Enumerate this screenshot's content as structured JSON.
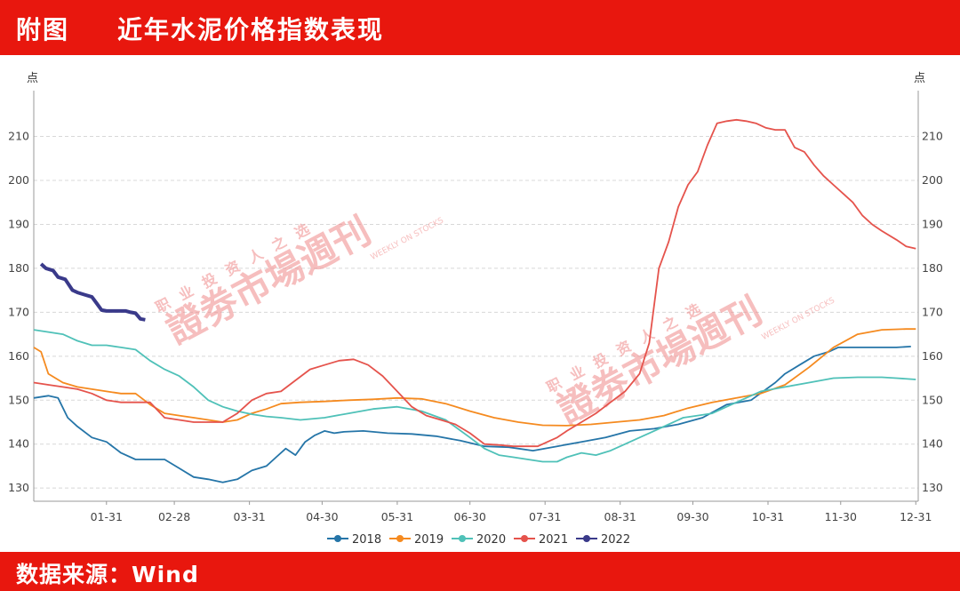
{
  "header": {
    "label": "附图",
    "title": "近年水泥价格指数表现",
    "bg_color": "#e8170e"
  },
  "footer": {
    "source": "数据来源：Wind"
  },
  "watermark": {
    "text": "證劵市場週刊",
    "subtext": "职 业 投 资 人 之 选",
    "en": "WEEKLY ON STOCKS",
    "color": "#f08a8a"
  },
  "chart_data": {
    "type": "line",
    "title": "",
    "y_unit_left": "点",
    "y_unit_right": "点",
    "ylim": [
      127,
      218
    ],
    "yticks": [
      130,
      140,
      150,
      160,
      170,
      180,
      190,
      200,
      210
    ],
    "xlim": [
      0,
      365
    ],
    "x_ticks": [
      {
        "label": "01-31",
        "day": 30
      },
      {
        "label": "02-28",
        "day": 58
      },
      {
        "label": "03-31",
        "day": 89
      },
      {
        "label": "04-30",
        "day": 119
      },
      {
        "label": "05-31",
        "day": 150
      },
      {
        "label": "06-30",
        "day": 180
      },
      {
        "label": "07-31",
        "day": 211
      },
      {
        "label": "08-31",
        "day": 242
      },
      {
        "label": "09-30",
        "day": 272
      },
      {
        "label": "10-31",
        "day": 303
      },
      {
        "label": "11-30",
        "day": 333
      },
      {
        "label": "12-31",
        "day": 364
      }
    ],
    "grid": "horizontal-dashed",
    "legend_position": "bottom",
    "series": [
      {
        "name": "2018",
        "color": "#2575a8",
        "x": [
          0,
          6,
          10,
          14,
          18,
          24,
          30,
          36,
          42,
          48,
          54,
          60,
          66,
          72,
          78,
          84,
          90,
          96,
          100,
          104,
          108,
          112,
          116,
          120,
          124,
          128,
          136,
          146,
          156,
          166,
          176,
          186,
          196,
          206,
          216,
          226,
          236,
          246,
          256,
          266,
          276,
          286,
          296,
          306,
          310,
          316,
          322,
          328,
          332,
          340,
          348,
          356,
          362
        ],
        "y": [
          150.5,
          151,
          150.5,
          146,
          144,
          141.5,
          140.5,
          138,
          136.5,
          136.5,
          136.5,
          134.5,
          132.5,
          132,
          131.3,
          132,
          134,
          135,
          137,
          139,
          137.5,
          140.5,
          142,
          143,
          142.5,
          142.8,
          143,
          142.5,
          142.3,
          141.8,
          140.8,
          139.5,
          139.3,
          138.5,
          139.5,
          140.5,
          141.5,
          143,
          143.5,
          144.5,
          146,
          149,
          150,
          154,
          156,
          158,
          160,
          161,
          162,
          162,
          162,
          162,
          162.2
        ]
      },
      {
        "name": "2019",
        "color": "#f58a1f",
        "x": [
          0,
          3,
          6,
          12,
          18,
          24,
          30,
          36,
          42,
          48,
          54,
          60,
          66,
          72,
          78,
          84,
          90,
          96,
          102,
          110,
          120,
          130,
          140,
          150,
          160,
          170,
          180,
          190,
          200,
          210,
          220,
          230,
          240,
          250,
          260,
          270,
          280,
          290,
          300,
          310,
          320,
          330,
          340,
          350,
          360,
          364
        ],
        "y": [
          162,
          161,
          156,
          154,
          153,
          152.5,
          152,
          151.5,
          151.5,
          149,
          147,
          146.5,
          146,
          145.5,
          145,
          145.5,
          147,
          148,
          149.2,
          149.5,
          149.7,
          150,
          150.2,
          150.5,
          150.3,
          149.2,
          147.5,
          146,
          145,
          144.3,
          144.2,
          144.5,
          145,
          145.5,
          146.5,
          148.2,
          149.5,
          150.5,
          151.5,
          153.5,
          157.5,
          162,
          165,
          166,
          166.2,
          166.2
        ]
      },
      {
        "name": "2020",
        "color": "#4fc1b8",
        "x": [
          0,
          6,
          12,
          18,
          24,
          30,
          36,
          42,
          48,
          54,
          60,
          66,
          72,
          78,
          84,
          90,
          96,
          102,
          110,
          120,
          130,
          140,
          150,
          160,
          170,
          180,
          186,
          192,
          198,
          204,
          210,
          216,
          220,
          226,
          232,
          238,
          244,
          250,
          256,
          262,
          268,
          274,
          280,
          290,
          300,
          310,
          320,
          330,
          340,
          350,
          356,
          364
        ],
        "y": [
          166,
          165.5,
          165,
          163.5,
          162.5,
          162.5,
          162,
          161.5,
          159,
          157,
          155.5,
          153,
          150,
          148.5,
          147.5,
          146.8,
          146.3,
          146,
          145.5,
          146,
          147,
          148,
          148.5,
          147.5,
          145.5,
          141.5,
          139,
          137.5,
          137,
          136.5,
          136,
          136,
          137,
          138,
          137.5,
          138.5,
          140,
          141.5,
          143,
          144.5,
          146,
          146.5,
          147,
          149.5,
          152,
          153,
          154,
          155,
          155.2,
          155.2,
          155,
          154.7
        ]
      },
      {
        "name": "2021",
        "color": "#e5534c",
        "x": [
          0,
          6,
          12,
          18,
          24,
          30,
          36,
          42,
          48,
          54,
          60,
          66,
          72,
          78,
          84,
          90,
          96,
          102,
          108,
          114,
          120,
          126,
          132,
          138,
          144,
          150,
          156,
          162,
          168,
          174,
          180,
          186,
          192,
          198,
          204,
          208,
          212,
          216,
          220,
          226,
          232,
          238,
          244,
          250,
          254,
          258,
          262,
          266,
          270,
          274,
          278,
          282,
          286,
          290,
          294,
          298,
          302,
          306,
          310,
          314,
          318,
          322,
          326,
          330,
          334,
          338,
          342,
          346,
          350,
          356,
          360,
          364
        ],
        "y": [
          154,
          153.5,
          153,
          152.5,
          151.5,
          150,
          149.5,
          149.5,
          149.5,
          146,
          145.5,
          145,
          145,
          145,
          147,
          150,
          151.5,
          152,
          154.5,
          157,
          158,
          159,
          159.3,
          158,
          155.5,
          152,
          148.5,
          146.5,
          145.5,
          144.5,
          142.5,
          140,
          139.8,
          139.5,
          139.5,
          139.5,
          140.5,
          141.5,
          143,
          145,
          147,
          149.5,
          152,
          156,
          163,
          180,
          186,
          194,
          199,
          202,
          208,
          213,
          213.5,
          213.8,
          213.5,
          213,
          212,
          211.5,
          211.5,
          207.5,
          206.5,
          203.5,
          201,
          199,
          197,
          195,
          192,
          190,
          188.5,
          186.5,
          185,
          184.5
        ]
      },
      {
        "name": "2022",
        "color": "#3a3a8a",
        "x": [
          3,
          5,
          8,
          10,
          13,
          16,
          18,
          21,
          24,
          26,
          28,
          30,
          32,
          34,
          36,
          38,
          40,
          42,
          44,
          46
        ],
        "y": [
          181,
          180,
          179.5,
          178,
          177.5,
          175,
          174.5,
          174,
          173.5,
          172,
          170.5,
          170.3,
          170.3,
          170.3,
          170.3,
          170.3,
          170,
          169.8,
          168.5,
          168.3
        ]
      }
    ]
  }
}
